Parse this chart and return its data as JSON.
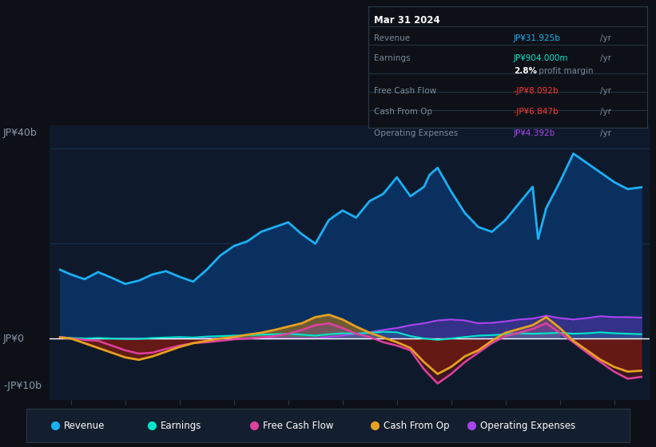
{
  "background_color": "#0d1117",
  "plot_bg_color": "#0e1a2b",
  "ylabel_top": "JP¥40b",
  "ylabel_zero": "JP¥0",
  "ylabel_bottom": "-JP¥10b",
  "ylim": [
    -13,
    45
  ],
  "revenue_color": "#1ab0f5",
  "earnings_color": "#00e5cc",
  "fcf_color": "#e040a0",
  "cashfromop_color": "#e8a020",
  "opex_color": "#aa44ee",
  "tooltip": {
    "date": "Mar 31 2024",
    "revenue_label": "Revenue",
    "revenue_value": "JP¥31.925b",
    "revenue_color": "#1ab0f5",
    "earnings_label": "Earnings",
    "earnings_value": "JP¥904.000m",
    "earnings_color": "#00e5cc",
    "margin_value": "2.8%",
    "fcf_label": "Free Cash Flow",
    "fcf_value": "-JP¥8.092b",
    "fcf_color": "#ff3333",
    "cashfromop_label": "Cash From Op",
    "cashfromop_value": "-JP¥6.847b",
    "cashfromop_color": "#ff3333",
    "opex_label": "Operating Expenses",
    "opex_value": "JP¥4.392b",
    "opex_color": "#aa44ee"
  },
  "legend": [
    {
      "label": "Revenue",
      "color": "#1ab0f5"
    },
    {
      "label": "Earnings",
      "color": "#00e5cc"
    },
    {
      "label": "Free Cash Flow",
      "color": "#e040a0"
    },
    {
      "label": "Cash From Op",
      "color": "#e8a020"
    },
    {
      "label": "Operating Expenses",
      "color": "#aa44ee"
    }
  ],
  "revenue_x": [
    2013.3,
    2013.5,
    2013.75,
    2014.0,
    2014.25,
    2014.5,
    2014.75,
    2015.0,
    2015.25,
    2015.5,
    2015.75,
    2016.0,
    2016.25,
    2016.5,
    2016.75,
    2017.0,
    2017.25,
    2017.5,
    2017.75,
    2018.0,
    2018.25,
    2018.5,
    2018.75,
    2019.0,
    2019.25,
    2019.5,
    2019.75,
    2020.0,
    2020.1,
    2020.25,
    2020.5,
    2020.75,
    2021.0,
    2021.25,
    2021.5,
    2021.75,
    2022.0,
    2022.1,
    2022.25,
    2022.5,
    2022.75,
    2023.0,
    2023.25,
    2023.5,
    2023.75,
    2024.0
  ],
  "revenue_y": [
    14.5,
    13.5,
    12.5,
    14.0,
    12.8,
    11.5,
    12.2,
    13.5,
    14.2,
    13.0,
    12.0,
    14.5,
    17.5,
    19.5,
    20.5,
    22.5,
    23.5,
    24.5,
    22.0,
    20.0,
    25.0,
    27.0,
    25.5,
    29.0,
    30.5,
    34.0,
    30.0,
    32.0,
    34.5,
    36.0,
    31.0,
    26.5,
    23.5,
    22.5,
    25.0,
    28.5,
    32.0,
    21.0,
    27.5,
    33.0,
    39.0,
    37.0,
    35.0,
    33.0,
    31.5,
    31.9
  ],
  "earnings_x": [
    2013.3,
    2013.5,
    2013.75,
    2014.0,
    2014.25,
    2014.5,
    2014.75,
    2015.0,
    2015.25,
    2015.5,
    2015.75,
    2016.0,
    2016.25,
    2016.5,
    2016.75,
    2017.0,
    2017.25,
    2017.5,
    2017.75,
    2018.0,
    2018.25,
    2018.5,
    2018.75,
    2019.0,
    2019.25,
    2019.5,
    2019.75,
    2020.0,
    2020.25,
    2020.5,
    2020.75,
    2021.0,
    2021.25,
    2021.5,
    2021.75,
    2022.0,
    2022.25,
    2022.5,
    2022.75,
    2023.0,
    2023.25,
    2023.5,
    2023.75,
    2024.0
  ],
  "earnings_y": [
    0.3,
    0.1,
    0.0,
    0.1,
    0.0,
    -0.1,
    -0.1,
    0.1,
    0.2,
    0.3,
    0.2,
    0.4,
    0.5,
    0.6,
    0.7,
    0.8,
    0.9,
    1.0,
    0.8,
    0.6,
    0.9,
    1.1,
    1.0,
    1.2,
    1.4,
    1.3,
    0.5,
    0.0,
    -0.3,
    0.0,
    0.3,
    0.6,
    0.7,
    0.9,
    1.1,
    1.0,
    1.1,
    1.2,
    1.0,
    1.1,
    1.3,
    1.1,
    1.0,
    0.9
  ],
  "fcf_x": [
    2013.3,
    2013.5,
    2013.75,
    2014.0,
    2014.25,
    2014.5,
    2014.75,
    2015.0,
    2015.25,
    2015.5,
    2015.75,
    2016.0,
    2016.25,
    2016.5,
    2016.75,
    2017.0,
    2017.25,
    2017.5,
    2017.75,
    2018.0,
    2018.25,
    2018.5,
    2018.75,
    2019.0,
    2019.25,
    2019.5,
    2019.75,
    2020.0,
    2020.25,
    2020.5,
    2020.75,
    2021.0,
    2021.25,
    2021.5,
    2021.75,
    2022.0,
    2022.25,
    2022.5,
    2022.75,
    2023.0,
    2023.25,
    2023.5,
    2023.75,
    2024.0
  ],
  "fcf_y": [
    0.3,
    0.0,
    -0.3,
    -0.5,
    -1.5,
    -2.5,
    -3.2,
    -3.0,
    -2.2,
    -1.5,
    -1.0,
    -0.8,
    -0.5,
    -0.2,
    0.0,
    0.2,
    0.5,
    1.0,
    1.8,
    2.8,
    3.2,
    2.2,
    1.0,
    0.3,
    -0.8,
    -1.5,
    -2.5,
    -6.5,
    -9.5,
    -7.5,
    -5.0,
    -3.0,
    -1.0,
    0.5,
    1.2,
    2.0,
    3.2,
    1.2,
    -0.8,
    -3.0,
    -5.0,
    -7.0,
    -8.5,
    -8.1
  ],
  "cashfromop_x": [
    2013.3,
    2013.5,
    2013.75,
    2014.0,
    2014.25,
    2014.5,
    2014.75,
    2015.0,
    2015.25,
    2015.5,
    2015.75,
    2016.0,
    2016.25,
    2016.5,
    2016.75,
    2017.0,
    2017.25,
    2017.5,
    2017.75,
    2018.0,
    2018.25,
    2018.5,
    2018.75,
    2019.0,
    2019.25,
    2019.5,
    2019.75,
    2020.0,
    2020.25,
    2020.5,
    2020.75,
    2021.0,
    2021.25,
    2021.5,
    2021.75,
    2022.0,
    2022.25,
    2022.5,
    2022.75,
    2023.0,
    2023.25,
    2023.5,
    2023.75,
    2024.0
  ],
  "cashfromop_y": [
    0.2,
    0.0,
    -1.0,
    -2.0,
    -3.0,
    -4.0,
    -4.5,
    -3.8,
    -2.8,
    -1.8,
    -1.0,
    -0.5,
    0.0,
    0.3,
    0.8,
    1.2,
    1.8,
    2.5,
    3.2,
    4.5,
    5.0,
    4.0,
    2.5,
    1.2,
    0.2,
    -0.8,
    -2.0,
    -5.0,
    -7.5,
    -6.0,
    -3.8,
    -2.5,
    -0.5,
    1.2,
    2.0,
    2.8,
    4.5,
    2.2,
    -0.5,
    -2.5,
    -4.5,
    -6.0,
    -7.0,
    -6.8
  ],
  "opex_x": [
    2013.3,
    2013.5,
    2013.75,
    2014.0,
    2014.25,
    2014.5,
    2014.75,
    2015.0,
    2015.25,
    2015.5,
    2015.75,
    2016.0,
    2016.25,
    2016.5,
    2016.75,
    2017.0,
    2017.25,
    2017.5,
    2017.75,
    2018.0,
    2018.25,
    2018.5,
    2018.75,
    2019.0,
    2019.25,
    2019.5,
    2019.75,
    2020.0,
    2020.25,
    2020.5,
    2020.75,
    2021.0,
    2021.25,
    2021.5,
    2021.75,
    2022.0,
    2022.25,
    2022.5,
    2022.75,
    2023.0,
    2023.25,
    2023.5,
    2023.75,
    2024.0
  ],
  "opex_y": [
    0.0,
    0.0,
    0.0,
    0.0,
    0.0,
    0.0,
    0.0,
    0.0,
    0.0,
    0.0,
    0.0,
    0.0,
    0.0,
    0.0,
    0.0,
    0.0,
    0.0,
    0.0,
    0.0,
    0.0,
    0.3,
    0.6,
    1.0,
    1.3,
    1.8,
    2.2,
    2.8,
    3.2,
    3.8,
    4.0,
    3.8,
    3.2,
    3.3,
    3.6,
    4.0,
    4.2,
    4.8,
    4.3,
    4.0,
    4.3,
    4.7,
    4.5,
    4.5,
    4.4
  ]
}
